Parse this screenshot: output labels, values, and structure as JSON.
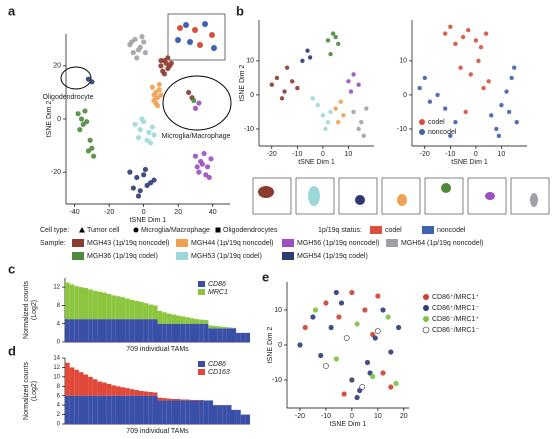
{
  "a": {
    "label": "a",
    "xlabel": "tSNE Dim 1",
    "ylabel": "tSNE Dim 2",
    "xlim": [
      -45,
      50
    ],
    "ylim": [
      -32,
      32
    ],
    "xticks": [
      -40,
      -20,
      0,
      20,
      40
    ],
    "yticks": [
      -20,
      0,
      20
    ],
    "annotations": [
      "Oligodendrocyte",
      "Microglia/Macrophage"
    ],
    "series": [
      {
        "name": "MGH43 (1p/19q noncodel)",
        "color": "#8b3a2f",
        "x": [
          10,
          12,
          14,
          13,
          11,
          15,
          12,
          16,
          14,
          10,
          26,
          28
        ],
        "y": [
          20,
          22,
          19,
          21,
          18,
          20,
          17,
          21,
          23,
          22,
          10,
          8
        ]
      },
      {
        "name": "MGH44 (1p/19q noncodel)",
        "color": "#f0a050",
        "x": [
          5,
          7,
          9,
          8,
          6,
          10,
          7,
          9,
          6,
          8
        ],
        "y": [
          12,
          10,
          11,
          8,
          9,
          9,
          6,
          13,
          7,
          5
        ]
      },
      {
        "name": "MGH56 (1p/19q noncodel)",
        "color": "#9b4fc0",
        "x": [
          30,
          33,
          35,
          37,
          32,
          36,
          34,
          38,
          31,
          39,
          32,
          30
        ],
        "y": [
          -14,
          -16,
          -13,
          -18,
          -20,
          -21,
          -17,
          -22,
          -18,
          -15,
          6,
          4
        ]
      },
      {
        "name": "MGH64 (1p/19q noncodel)",
        "color": "#a0a0a8",
        "x": [
          -8,
          -5,
          -2,
          0,
          -6,
          -3,
          1,
          -4,
          -7,
          -1
        ],
        "y": [
          28,
          30,
          27,
          29,
          25,
          26,
          25,
          23,
          29,
          31
        ]
      },
      {
        "name": "MGH36 (1p/19q codel)",
        "color": "#4f8a3c",
        "x": [
          -38,
          -36,
          -34,
          -35,
          -33,
          -37,
          -31,
          -30,
          -32,
          -29,
          29
        ],
        "y": [
          2,
          0,
          3,
          -2,
          -1,
          -4,
          -8,
          -11,
          -12,
          -14,
          7
        ]
      },
      {
        "name": "MGH53 (1p/19q codel)",
        "color": "#9dd8d8",
        "x": [
          -5,
          -2,
          0,
          3,
          5,
          -3,
          2,
          6,
          -1,
          4
        ],
        "y": [
          -2,
          -4,
          -1,
          -5,
          -3,
          -7,
          -8,
          -6,
          0,
          -9
        ]
      },
      {
        "name": "MGH54 (1p/19q codel)",
        "color": "#2f3a70",
        "x": [
          -8,
          -4,
          0,
          4,
          -6,
          -2,
          2,
          6,
          -3,
          1,
          -32,
          -30
        ],
        "y": [
          -20,
          -22,
          -21,
          -24,
          -26,
          -27,
          -25,
          -23,
          -29,
          -19,
          15,
          14
        ]
      }
    ]
  },
  "legend_a": {
    "cell_type_title": "Cell type:",
    "cell_types": [
      "Tumor cell",
      "Microglia/Macrophage",
      "Oligodendrocytes"
    ],
    "status_title": "1p/19q status:",
    "statuses": [
      {
        "name": "codel",
        "color": "#d6503c"
      },
      {
        "name": "noncodel",
        "color": "#3e63b0"
      }
    ],
    "sample_title": "Sample:"
  },
  "b": {
    "label": "b",
    "left": {
      "xlabel": "tSNE Dim 1",
      "ylabel": "tSNE Dim 2",
      "xlim": [
        -25,
        20
      ],
      "ylim": [
        -15,
        22
      ],
      "xticks": [
        -20,
        -10,
        0,
        10
      ],
      "yticks": [
        -10,
        0,
        10
      ],
      "series": [
        {
          "color": "#8b3a2f",
          "x": [
            -20,
            -18,
            -15,
            -12,
            -16,
            -10,
            -14
          ],
          "y": [
            3,
            5,
            1,
            4,
            -1,
            2,
            8
          ]
        },
        {
          "color": "#9dd8d8",
          "x": [
            -2,
            0,
            2,
            -4,
            1,
            3
          ],
          "y": [
            -3,
            -6,
            -8,
            -1,
            -10,
            -5
          ]
        },
        {
          "color": "#4f8a3c",
          "x": [
            2,
            4,
            6,
            3,
            5
          ],
          "y": [
            16,
            18,
            15,
            12,
            17
          ]
        },
        {
          "color": "#f0a050",
          "x": [
            5,
            7,
            8,
            6
          ],
          "y": [
            -4,
            -2,
            -6,
            -8
          ]
        },
        {
          "color": "#9b4fc0",
          "x": [
            10,
            12,
            14,
            11
          ],
          "y": [
            4,
            6,
            3,
            1
          ]
        },
        {
          "color": "#a0a0a8",
          "x": [
            12,
            15,
            17,
            14,
            16
          ],
          "y": [
            -5,
            -8,
            -4,
            -10,
            -12
          ]
        },
        {
          "color": "#2f3a70",
          "x": [
            -8,
            -6,
            -5
          ],
          "y": [
            10,
            13,
            11
          ]
        }
      ]
    },
    "right": {
      "xlabel": "tSNE Dim 1",
      "xlim": [
        -25,
        20
      ],
      "ylim": [
        -15,
        22
      ],
      "xticks": [
        -20,
        -10,
        0,
        10
      ],
      "yticks": [
        -10,
        0,
        10
      ],
      "series": [
        {
          "name": "codel",
          "color": "#d6503c",
          "x": [
            -12,
            -10,
            -8,
            -5,
            -3,
            0,
            2,
            4,
            -6,
            -2,
            1,
            3,
            5,
            -4
          ],
          "y": [
            18,
            20,
            15,
            17,
            19,
            16,
            14,
            18,
            8,
            6,
            10,
            2,
            4,
            -5
          ]
        },
        {
          "name": "noncodel",
          "color": "#3e63b0",
          "x": [
            -22,
            -20,
            -18,
            -15,
            -12,
            -8,
            6,
            8,
            10,
            12,
            14,
            16,
            9,
            13,
            15,
            -10
          ],
          "y": [
            2,
            5,
            -2,
            0,
            -4,
            -8,
            -6,
            -10,
            -3,
            1,
            5,
            -8,
            -12,
            -5,
            8,
            -12
          ]
        }
      ]
    }
  },
  "c": {
    "label": "c",
    "ylabel": [
      "Normalized counts",
      "(Log2)"
    ],
    "xlabel": "709 individual TAMs",
    "ylim": [
      0,
      14
    ],
    "yticks": [
      0,
      4,
      8,
      12
    ],
    "series": [
      {
        "name": "CD86",
        "color": "#3a4fa8",
        "values": [
          5,
          5,
          5,
          5,
          5,
          5,
          5,
          5,
          5,
          5,
          5,
          5,
          5,
          5,
          5,
          5,
          5,
          5,
          5,
          5,
          4,
          4,
          4,
          4,
          4,
          4,
          4,
          4,
          4,
          4,
          4,
          3,
          3,
          3,
          3,
          3,
          3,
          2,
          2,
          2
        ]
      },
      {
        "name": "MRC1",
        "color": "#8cc63f",
        "values": [
          8,
          7.6,
          7.2,
          7,
          6.8,
          6.5,
          6.2,
          6,
          5.8,
          5.5,
          5.2,
          5,
          4.8,
          4.5,
          4.2,
          4,
          3.8,
          3.5,
          3.2,
          3,
          2.8,
          2.5,
          2.2,
          2,
          1.8,
          1.6,
          1.4,
          1.2,
          1,
          0.9,
          0.8,
          0.6,
          0.5,
          0.4,
          0.3,
          0.2,
          0.1,
          0,
          0,
          0
        ]
      }
    ]
  },
  "d": {
    "label": "d",
    "ylabel": [
      "Normalized counts",
      "(Log2)"
    ],
    "xlabel": "709 individual TAMs",
    "ylim": [
      0,
      14
    ],
    "yticks": [
      0,
      2,
      4,
      6,
      8,
      10,
      12,
      14
    ],
    "series": [
      {
        "name": "CD86",
        "color": "#3a4fa8",
        "values": [
          6,
          6,
          6,
          6,
          6,
          6,
          6,
          6,
          6,
          6,
          6,
          6,
          6,
          6,
          6,
          6,
          6,
          6,
          6,
          6,
          5,
          5,
          5,
          5,
          5,
          5,
          5,
          5,
          5,
          5,
          5,
          5,
          4,
          4,
          4,
          4,
          3,
          3,
          2,
          2
        ]
      },
      {
        "name": "CD163",
        "color": "#e0483a",
        "values": [
          7,
          6,
          5.5,
          5,
          4.5,
          4,
          3.5,
          3,
          2.8,
          2.5,
          2.2,
          2,
          1.8,
          1.6,
          1.4,
          1.2,
          1,
          0.9,
          0.8,
          0.7,
          0.6,
          0.5,
          0.4,
          0.3,
          0.3,
          0.2,
          0.2,
          0.1,
          0.1,
          0.1,
          0,
          0,
          0,
          0,
          0,
          0,
          0,
          0,
          0,
          0
        ]
      }
    ]
  },
  "e": {
    "label": "e",
    "xlabel": "tSNE Dim 1",
    "ylabel": "tSNE Dim 2",
    "xlim": [
      -25,
      22
    ],
    "ylim": [
      -18,
      18
    ],
    "xticks": [
      -20,
      -10,
      0,
      10,
      20
    ],
    "yticks": [
      -10,
      0,
      10
    ],
    "series": [
      {
        "name": "CD86⁺/MRC1⁺",
        "color": "#d04030",
        "x": [
          -18,
          -10,
          -5,
          0,
          5,
          8,
          12,
          15,
          -3,
          10
        ],
        "y": [
          5,
          12,
          8,
          15,
          10,
          3,
          -8,
          -12,
          -14,
          14
        ]
      },
      {
        "name": "CD86⁺/MRC1⁻",
        "color": "#303a80",
        "x": [
          -20,
          -15,
          -12,
          -8,
          -4,
          0,
          3,
          6,
          9,
          12,
          15,
          18,
          -6,
          2,
          7
        ],
        "y": [
          0,
          8,
          -3,
          5,
          12,
          -10,
          -13,
          -5,
          2,
          10,
          -2,
          5,
          15,
          -15,
          -8
        ]
      },
      {
        "name": "CD86⁻/MRC1⁺",
        "color": "#80c040",
        "x": [
          -14,
          -6,
          2,
          8,
          14,
          17
        ],
        "y": [
          10,
          -4,
          6,
          -9,
          8,
          -11
        ]
      },
      {
        "name": "CD86⁻/MRC1⁻",
        "color": "#ffffff",
        "x": [
          -10,
          -2,
          4,
          10
        ],
        "y": [
          -6,
          2,
          -12,
          4
        ]
      }
    ]
  }
}
